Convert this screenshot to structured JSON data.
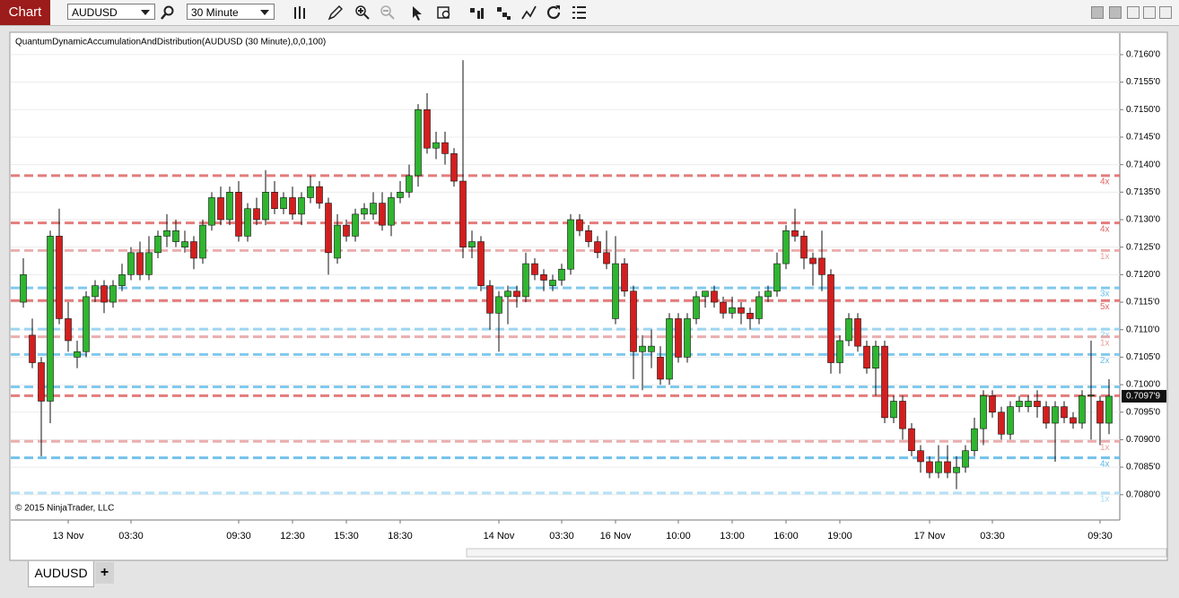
{
  "toolbar": {
    "title": "Chart",
    "instrument": "AUDUSD",
    "interval": "30 Minute"
  },
  "chart_data": {
    "type": "candlestick",
    "indicator": "QuantumDynamicAccumulationAndDistribution(AUDUSD (30 Minute),0,0,100)",
    "copyright": "© 2015 NinjaTrader, LLC",
    "up_color": "#2fb52f",
    "down_color": "#d41e1e",
    "categories": [
      null,
      null,
      null,
      null,
      null,
      "13 Nov",
      null,
      null,
      null,
      null,
      null,
      null,
      "03:30",
      null,
      null,
      null,
      null,
      null,
      null,
      null,
      null,
      null,
      null,
      null,
      "09:30",
      null,
      null,
      null,
      null,
      null,
      "12:30",
      null,
      null,
      null,
      null,
      null,
      "15:30",
      null,
      null,
      null,
      null,
      null,
      "18:30",
      null,
      null,
      null,
      null,
      null,
      null,
      null,
      null,
      null,
      null,
      "14 Nov",
      null,
      null,
      null,
      null,
      null,
      null,
      "03:30",
      null,
      null,
      null,
      null,
      null,
      "16 Nov",
      null,
      null,
      null,
      null,
      null,
      null,
      "10:00",
      null,
      null,
      null,
      null,
      null,
      "13:00",
      null,
      null,
      null,
      null,
      null,
      "16:00",
      null,
      null,
      null,
      null,
      null,
      "19:00",
      null,
      null,
      null,
      null,
      null,
      null,
      null,
      null,
      null,
      "17 Nov",
      null,
      null,
      null,
      null,
      null,
      null,
      "03:30",
      null,
      null,
      null,
      null,
      null,
      null,
      null,
      null,
      null,
      null,
      null,
      "09:30",
      null
    ],
    "open": [
      0.7115,
      0.7109,
      0.7104,
      0.7097,
      0.7127,
      0.7112,
      0.7105,
      0.7106,
      0.7116,
      0.7118,
      0.7115,
      0.7118,
      0.712,
      0.7124,
      0.712,
      0.7124,
      0.7127,
      0.7126,
      0.7125,
      0.7126,
      0.7123,
      0.7129,
      0.7134,
      0.713,
      0.7135,
      0.7127,
      0.7132,
      0.713,
      0.7135,
      0.7132,
      0.7134,
      0.7131,
      0.7134,
      0.7136,
      0.7133,
      0.7123,
      0.7129,
      0.7127,
      0.7131,
      0.7131,
      0.7133,
      0.7129,
      0.7134,
      0.7135,
      0.7138,
      0.715,
      0.7143,
      0.7144,
      0.7142,
      0.7137,
      0.7125,
      0.7126,
      0.7118,
      0.7113,
      0.7116,
      0.7117,
      0.7116,
      0.7122,
      0.712,
      0.7118,
      0.7119,
      0.7121,
      0.713,
      0.7128,
      0.7126,
      0.7124,
      0.7112,
      0.7122,
      0.7117,
      0.7106,
      0.7106,
      0.7105,
      0.7101,
      0.7112,
      0.7105,
      0.7112,
      0.7116,
      0.7117,
      0.7115,
      0.7113,
      0.7114,
      0.7113,
      0.7112,
      0.7116,
      0.7117,
      0.7122,
      0.7128,
      0.7127,
      0.7123,
      0.7123,
      0.712,
      0.7104,
      0.7108,
      0.7112,
      0.7107,
      0.7103,
      0.7107,
      0.7094,
      0.7097,
      0.7092,
      0.7088,
      0.7086,
      0.7084,
      0.7086,
      0.7084,
      0.7085,
      0.7088,
      0.7092,
      0.7098,
      0.7095,
      0.7091,
      0.7096,
      0.7096,
      0.7097,
      0.7096,
      0.7093,
      0.7096,
      0.7094,
      0.7093,
      0.7098,
      0.7097,
      0.7093
    ],
    "high": [
      0.7123,
      0.7112,
      0.7105,
      0.7128,
      0.7132,
      0.7115,
      0.7108,
      0.7117,
      0.7119,
      0.7119,
      0.7119,
      0.7122,
      0.7125,
      0.7126,
      0.7127,
      0.7128,
      0.7131,
      0.713,
      0.7128,
      0.7127,
      0.713,
      0.7135,
      0.7136,
      0.7136,
      0.7137,
      0.7133,
      0.7134,
      0.7139,
      0.7137,
      0.7135,
      0.7136,
      0.7135,
      0.7138,
      0.7137,
      0.7134,
      0.7131,
      0.713,
      0.7132,
      0.7133,
      0.7135,
      0.7135,
      0.7135,
      0.7137,
      0.714,
      0.7151,
      0.7153,
      0.7146,
      0.7146,
      0.7143,
      0.7159,
      0.7128,
      0.7127,
      0.7119,
      0.7117,
      0.7118,
      0.7118,
      0.7124,
      0.7123,
      0.7121,
      0.712,
      0.7122,
      0.7131,
      0.7131,
      0.7129,
      0.7127,
      0.7128,
      0.7127,
      0.7123,
      0.7118,
      0.7109,
      0.711,
      0.7107,
      0.7113,
      0.7113,
      0.7113,
      0.7117,
      0.7117,
      0.7118,
      0.7116,
      0.7116,
      0.7115,
      0.7114,
      0.7117,
      0.7118,
      0.7124,
      0.7129,
      0.7132,
      0.7128,
      0.7124,
      0.7128,
      0.7121,
      0.7109,
      0.7113,
      0.7113,
      0.7108,
      0.7108,
      0.7108,
      0.7098,
      0.7098,
      0.7093,
      0.7089,
      0.7087,
      0.7089,
      0.7089,
      0.7087,
      0.7089,
      0.7094,
      0.7099,
      0.7099,
      0.7096,
      0.7097,
      0.7098,
      0.7098,
      0.7099,
      0.7097,
      0.7097,
      0.7097,
      0.7095,
      0.7099,
      0.7108,
      0.7098,
      0.7101
    ],
    "low": [
      0.7114,
      0.7103,
      0.7087,
      0.7093,
      0.7111,
      0.7106,
      0.7103,
      0.7105,
      0.7115,
      0.7113,
      0.7114,
      0.7117,
      0.7119,
      0.7119,
      0.7119,
      0.7123,
      0.7125,
      0.7125,
      0.7124,
      0.7121,
      0.7122,
      0.7128,
      0.7129,
      0.7129,
      0.7126,
      0.7126,
      0.7129,
      0.7129,
      0.7131,
      0.7131,
      0.713,
      0.7129,
      0.7133,
      0.7132,
      0.712,
      0.7122,
      0.7126,
      0.7126,
      0.713,
      0.713,
      0.7128,
      0.7127,
      0.7133,
      0.7134,
      0.7136,
      0.7142,
      0.7141,
      0.714,
      0.7136,
      0.7123,
      0.7123,
      0.7117,
      0.711,
      0.7106,
      0.7111,
      0.7114,
      0.7115,
      0.7119,
      0.7117,
      0.7117,
      0.7118,
      0.712,
      0.7127,
      0.7125,
      0.7123,
      0.7121,
      0.7111,
      0.7116,
      0.7101,
      0.7099,
      0.7103,
      0.71,
      0.71,
      0.7104,
      0.7104,
      0.7111,
      0.7114,
      0.7114,
      0.7112,
      0.7112,
      0.7111,
      0.711,
      0.7111,
      0.7115,
      0.7116,
      0.7121,
      0.7126,
      0.7121,
      0.7118,
      0.7117,
      0.7102,
      0.7102,
      0.7107,
      0.7106,
      0.7102,
      0.7098,
      0.7093,
      0.7093,
      0.709,
      0.7087,
      0.7084,
      0.7083,
      0.7083,
      0.7083,
      0.7081,
      0.7084,
      0.7087,
      0.7089,
      0.7094,
      0.709,
      0.709,
      0.7095,
      0.7095,
      0.7094,
      0.7092,
      0.7086,
      0.7093,
      0.7092,
      0.7092,
      0.709,
      0.7089,
      0.7091
    ],
    "close": [
      0.712,
      0.7104,
      0.7097,
      0.7127,
      0.7112,
      0.7108,
      0.7106,
      0.7116,
      0.7118,
      0.7115,
      0.7118,
      0.712,
      0.7124,
      0.712,
      0.7124,
      0.7127,
      0.7128,
      0.7128,
      0.7126,
      0.7123,
      0.7129,
      0.7134,
      0.713,
      0.7135,
      0.7127,
      0.7132,
      0.713,
      0.7135,
      0.7132,
      0.7134,
      0.7131,
      0.7134,
      0.7136,
      0.7133,
      0.7124,
      0.7129,
      0.7127,
      0.7131,
      0.7132,
      0.7133,
      0.7129,
      0.7134,
      0.7135,
      0.7138,
      0.715,
      0.7143,
      0.7144,
      0.7142,
      0.7137,
      0.7125,
      0.7126,
      0.7118,
      0.7113,
      0.7116,
      0.7117,
      0.7116,
      0.7122,
      0.712,
      0.7119,
      0.7119,
      0.7121,
      0.713,
      0.7128,
      0.7126,
      0.7124,
      0.7122,
      0.7122,
      0.7117,
      0.7106,
      0.7107,
      0.7107,
      0.7101,
      0.7112,
      0.7105,
      0.7112,
      0.7116,
      0.7117,
      0.7115,
      0.7113,
      0.7114,
      0.7113,
      0.7112,
      0.7116,
      0.7117,
      0.7122,
      0.7128,
      0.7127,
      0.7123,
      0.7122,
      0.712,
      0.7104,
      0.7108,
      0.7112,
      0.7107,
      0.7103,
      0.7107,
      0.7094,
      0.7097,
      0.7092,
      0.7088,
      0.7086,
      0.7084,
      0.7086,
      0.7084,
      0.7085,
      0.7088,
      0.7092,
      0.7098,
      0.7095,
      0.7091,
      0.7096,
      0.7097,
      0.7097,
      0.7096,
      0.7093,
      0.7096,
      0.7094,
      0.7093,
      0.7098,
      0.70981,
      0.7093,
      0.70979
    ],
    "ylim": [
      0.70754,
      0.71639
    ],
    "yticks": [
      {
        "value": 0.708,
        "label": "0.7080'0"
      },
      {
        "value": 0.7085,
        "label": "0.7085'0"
      },
      {
        "value": 0.709,
        "label": "0.7090'0"
      },
      {
        "value": 0.7095,
        "label": "0.7095'0"
      },
      {
        "value": 0.71,
        "label": "0.7100'0"
      },
      {
        "value": 0.7105,
        "label": "0.7105'0"
      },
      {
        "value": 0.711,
        "label": "0.7110'0"
      },
      {
        "value": 0.7115,
        "label": "0.7115'0"
      },
      {
        "value": 0.712,
        "label": "0.7120'0"
      },
      {
        "value": 0.7125,
        "label": "0.7125'0"
      },
      {
        "value": 0.713,
        "label": "0.7130'0"
      },
      {
        "value": 0.7135,
        "label": "0.7135'0"
      },
      {
        "value": 0.714,
        "label": "0.7140'0"
      },
      {
        "value": 0.7145,
        "label": "0.7145'0"
      },
      {
        "value": 0.715,
        "label": "0.7150'0"
      },
      {
        "value": 0.7155,
        "label": "0.7155'0"
      },
      {
        "value": 0.716,
        "label": "0.7160'0"
      }
    ],
    "grid": true,
    "levels": [
      {
        "value": 0.7138,
        "label": "4x",
        "color": "#e06666"
      },
      {
        "value": 0.71294,
        "label": "4x",
        "color": "#e06666"
      },
      {
        "value": 0.71244,
        "label": "1x",
        "color": "#e8a0a0"
      },
      {
        "value": 0.71176,
        "label": "3x",
        "color": "#6cc0ea"
      },
      {
        "value": 0.71153,
        "label": "5x",
        "color": "#e06666"
      },
      {
        "value": 0.71101,
        "label": "2x",
        "color": "#8fd0f0"
      },
      {
        "value": 0.71087,
        "label": "1x",
        "color": "#e8a0a0"
      },
      {
        "value": 0.71055,
        "label": "2x",
        "color": "#6cc0ea"
      },
      {
        "value": 0.70996,
        "color": "#6cc0ea"
      },
      {
        "value": 0.7098,
        "color": "#e06666"
      },
      {
        "value": 0.70897,
        "label": "1x",
        "color": "#e8a0a0"
      },
      {
        "value": 0.70867,
        "label": "4x",
        "color": "#5bb8e8"
      },
      {
        "value": 0.70803,
        "label": "1x",
        "color": "#a8dcf4"
      }
    ],
    "last_price": {
      "value": 0.70979,
      "label": "0.7097'9"
    }
  },
  "tabs": [
    "AUDUSD"
  ],
  "add_tab": "+"
}
